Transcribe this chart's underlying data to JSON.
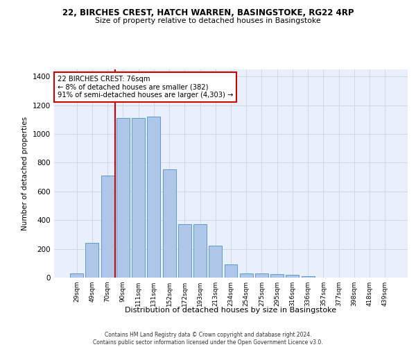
{
  "title_line1": "22, BIRCHES CREST, HATCH WARREN, BASINGSTOKE, RG22 4RP",
  "title_line2": "Size of property relative to detached houses in Basingstoke",
  "xlabel": "Distribution of detached houses by size in Basingstoke",
  "ylabel": "Number of detached properties",
  "categories": [
    "29sqm",
    "49sqm",
    "70sqm",
    "90sqm",
    "111sqm",
    "131sqm",
    "152sqm",
    "172sqm",
    "193sqm",
    "213sqm",
    "234sqm",
    "254sqm",
    "275sqm",
    "295sqm",
    "316sqm",
    "336sqm",
    "357sqm",
    "377sqm",
    "398sqm",
    "418sqm",
    "439sqm"
  ],
  "bar_heights": [
    30,
    240,
    710,
    1110,
    1110,
    1120,
    755,
    370,
    370,
    220,
    90,
    30,
    30,
    25,
    20,
    10,
    0,
    0,
    0,
    0,
    0
  ],
  "bar_color": "#aec6e8",
  "bar_edge_color": "#5b9bd5",
  "vline_index": 2,
  "annotation_text": "22 BIRCHES CREST: 76sqm\n← 8% of detached houses are smaller (382)\n91% of semi-detached houses are larger (4,303) →",
  "annotation_box_color": "#ffffff",
  "annotation_box_edge_color": "#cc0000",
  "vline_color": "#cc0000",
  "grid_color": "#d0d8e8",
  "background_color": "#eaf0fb",
  "ylim": [
    0,
    1450
  ],
  "yticks": [
    0,
    200,
    400,
    600,
    800,
    1000,
    1200,
    1400
  ],
  "footer_line1": "Contains HM Land Registry data © Crown copyright and database right 2024.",
  "footer_line2": "Contains public sector information licensed under the Open Government Licence v3.0."
}
